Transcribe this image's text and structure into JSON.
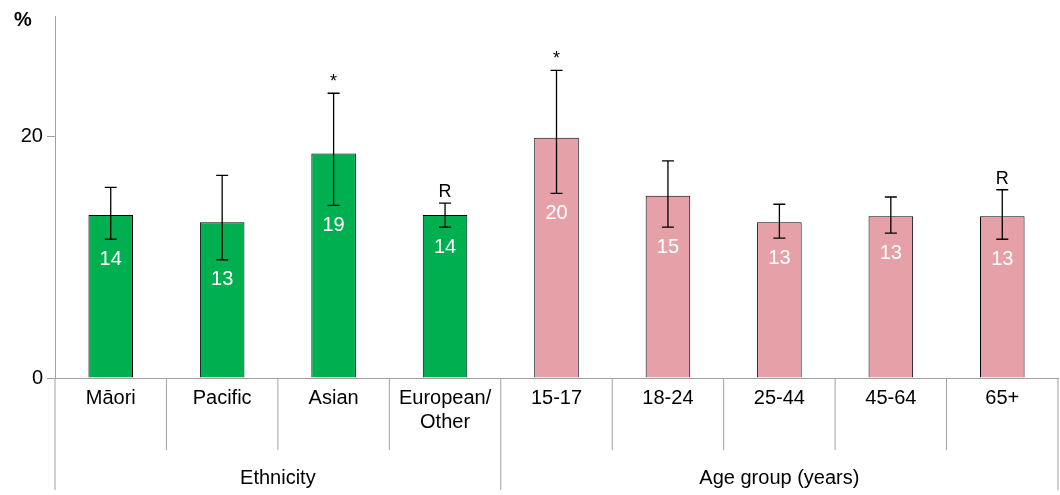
{
  "chart_data": {
    "type": "bar",
    "ylabel": "%",
    "categories": [
      "Māori",
      "Pacific",
      "Asian",
      "European/Other",
      "15-17",
      "18-24",
      "25-44",
      "45-64",
      "65+"
    ],
    "values": [
      13.5,
      12.9,
      18.6,
      13.5,
      19.9,
      15.1,
      12.9,
      13.4,
      13.4
    ],
    "value_labels": [
      "14",
      "13",
      "19",
      "14",
      "20",
      "15",
      "13",
      "13",
      "13"
    ],
    "errors": [
      [
        11.5,
        15.8
      ],
      [
        9.8,
        16.8
      ],
      [
        14.3,
        23.6
      ],
      [
        12.5,
        14.5
      ],
      [
        15.3,
        25.5
      ],
      [
        12.5,
        18.0
      ],
      [
        11.6,
        14.4
      ],
      [
        12.0,
        15.0
      ],
      [
        11.5,
        15.6
      ]
    ],
    "colors": [
      "#00b050",
      "#00b050",
      "#00b050",
      "#00b050",
      "#e6a0a8",
      "#e6a0a8",
      "#e6a0a8",
      "#e6a0a8",
      "#e6a0a8"
    ],
    "ylim": [
      0,
      30
    ],
    "yticks": [
      0,
      20
    ],
    "grid": false,
    "legend": false,
    "annotations": [
      "Ethnicity",
      "Age group (years)",
      {
        "text": "*",
        "x": "Asian",
        "y": 23.6
      },
      {
        "text": "R",
        "x": "European/Other",
        "y": 14.5
      },
      {
        "text": "*",
        "x": "15-17",
        "y": 25.5
      },
      {
        "text": "R",
        "x": "65+",
        "y": 15.6
      }
    ]
  }
}
